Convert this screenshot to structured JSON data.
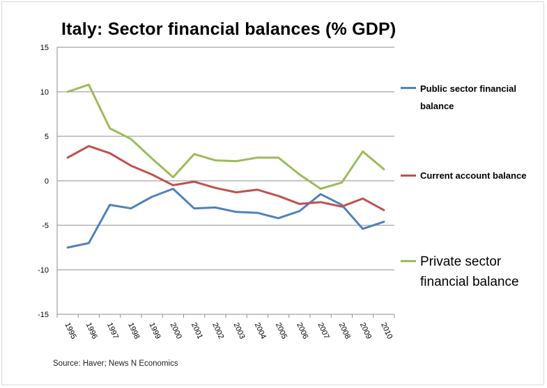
{
  "chart_data": {
    "type": "line",
    "title": "Italy: Sector financial balances (% GDP)",
    "xlabel": "",
    "ylabel": "",
    "ylim": [
      -15,
      15
    ],
    "yticks": [
      15,
      10,
      5,
      0,
      -5,
      -10,
      -15
    ],
    "grid": true,
    "legend_position": "right",
    "categories": [
      "1995",
      "1996",
      "1997",
      "1998",
      "1999",
      "2000",
      "2001",
      "2002",
      "2003",
      "2004",
      "2005",
      "2006",
      "2007",
      "2008",
      "2009",
      "2010"
    ],
    "series": [
      {
        "name": "Public sector financial balance",
        "color": "#4f81bd",
        "values": [
          -7.5,
          -7.0,
          -2.7,
          -3.1,
          -1.8,
          -0.9,
          -3.1,
          -3.0,
          -3.5,
          -3.6,
          -4.2,
          -3.4,
          -1.5,
          -2.7,
          -5.4,
          -4.6
        ]
      },
      {
        "name": "Current account balance",
        "color": "#c0504d",
        "values": [
          2.6,
          3.9,
          3.1,
          1.7,
          0.7,
          -0.5,
          -0.1,
          -0.8,
          -1.3,
          -1.0,
          -1.7,
          -2.6,
          -2.4,
          -2.9,
          -2.0,
          -3.3
        ]
      },
      {
        "name": "Private sector financial balance",
        "color": "#9bbb59",
        "values": [
          10.0,
          10.8,
          5.9,
          4.7,
          2.5,
          0.4,
          3.0,
          2.3,
          2.2,
          2.6,
          2.6,
          0.7,
          -0.9,
          -0.2,
          3.3,
          1.3
        ]
      }
    ]
  },
  "source": "Source: Haver; News N Economics"
}
